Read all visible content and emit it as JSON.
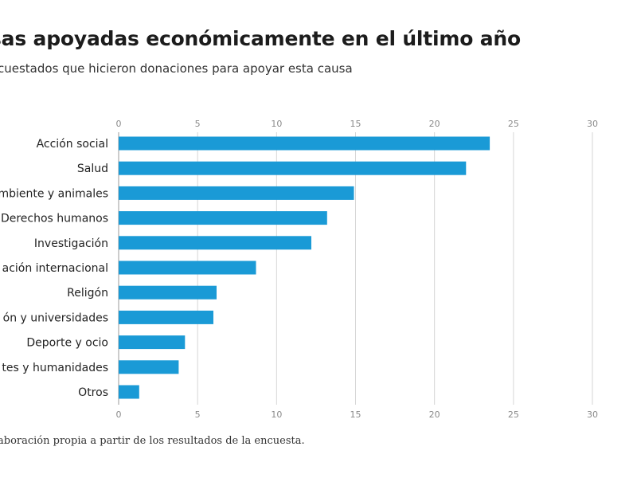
{
  "header": {
    "title": "sas apoyadas económicamente en el último año",
    "subtitle": "cuestados que hicieron donaciones para apoyar esta causa"
  },
  "footer": {
    "source": "aboración propia a partir de los resultados de la encuesta."
  },
  "colors": {
    "bar": "#1a9ad6",
    "grid": "#d6d6d6",
    "axis": "#9a9a9a"
  },
  "chart_data": {
    "type": "bar",
    "orientation": "horizontal",
    "categories": [
      "Acción social",
      "Salud",
      "mbiente y animales",
      "Derechos humanos",
      "Investigación",
      "ación internacional",
      "Religón",
      "ón y universidades",
      "Deporte y ocio",
      "tes y humanidades",
      "Otros"
    ],
    "values": [
      23.5,
      22.0,
      14.9,
      13.2,
      12.2,
      8.7,
      6.2,
      6.0,
      4.2,
      3.8,
      1.3
    ],
    "xlim": [
      0,
      30
    ],
    "xticks": [
      0,
      5,
      10,
      15,
      20,
      25,
      30
    ],
    "grid": true,
    "ticks_top_and_bottom": true
  }
}
